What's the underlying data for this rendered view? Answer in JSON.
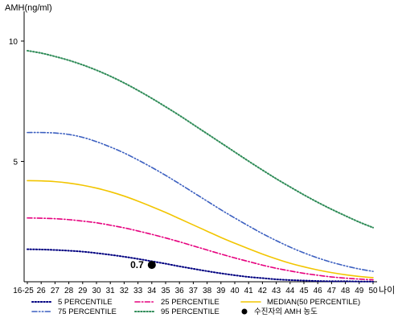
{
  "chart_data": {
    "type": "line",
    "ylabel": "AMH(ng/ml)",
    "xlabel": "나이",
    "ylim": [
      0,
      11
    ],
    "yticks": [
      5,
      10
    ],
    "x": [
      "16-25",
      "26",
      "27",
      "28",
      "29",
      "30",
      "31",
      "32",
      "33",
      "34",
      "35",
      "36",
      "37",
      "38",
      "39",
      "40",
      "41",
      "42",
      "43",
      "44",
      "45",
      "46",
      "47",
      "48",
      "49",
      "50"
    ],
    "series": [
      {
        "name": "5 PERCENTILE",
        "color": "#000080",
        "dash": "dot",
        "values": [
          1.35,
          1.34,
          1.32,
          1.29,
          1.25,
          1.19,
          1.12,
          1.04,
          0.95,
          0.85,
          0.75,
          0.64,
          0.54,
          0.44,
          0.35,
          0.27,
          0.2,
          0.15,
          0.1,
          0.07,
          0.05,
          0.03,
          0.02,
          0.02,
          0.01,
          0.01
        ]
      },
      {
        "name": "25 PERCENTILE",
        "color": "#e6007e",
        "dash": "dashdot",
        "values": [
          2.65,
          2.64,
          2.62,
          2.58,
          2.52,
          2.45,
          2.35,
          2.24,
          2.11,
          1.97,
          1.82,
          1.66,
          1.49,
          1.32,
          1.15,
          0.99,
          0.84,
          0.69,
          0.56,
          0.45,
          0.35,
          0.27,
          0.2,
          0.15,
          0.11,
          0.08
        ]
      },
      {
        "name": "MEDIAN(50 PERCENTILE)",
        "color": "#f2c500",
        "dash": "solid",
        "values": [
          4.2,
          4.19,
          4.16,
          4.1,
          4.01,
          3.89,
          3.74,
          3.56,
          3.35,
          3.12,
          2.88,
          2.62,
          2.36,
          2.1,
          1.84,
          1.6,
          1.37,
          1.15,
          0.95,
          0.77,
          0.62,
          0.49,
          0.38,
          0.29,
          0.22,
          0.17
        ]
      },
      {
        "name": "75 PERCENTILE",
        "color": "#3b5fc0",
        "dash": "dashdotdot",
        "values": [
          6.2,
          6.2,
          6.18,
          6.12,
          6.0,
          5.82,
          5.6,
          5.35,
          5.06,
          4.75,
          4.42,
          4.07,
          3.71,
          3.35,
          2.99,
          2.65,
          2.32,
          2.0,
          1.71,
          1.44,
          1.2,
          0.99,
          0.81,
          0.66,
          0.53,
          0.43
        ]
      },
      {
        "name": "95 PERCENTILE",
        "color": "#2e8b57",
        "dash": "dot",
        "values": [
          9.6,
          9.5,
          9.36,
          9.2,
          9.01,
          8.79,
          8.54,
          8.26,
          7.95,
          7.62,
          7.27,
          6.91,
          6.53,
          6.15,
          5.77,
          5.39,
          5.01,
          4.64,
          4.28,
          3.94,
          3.61,
          3.3,
          3.01,
          2.74,
          2.48,
          2.25
        ]
      }
    ],
    "marker": {
      "name": "수진자의 AMH 농도",
      "x": "34",
      "y": 0.7,
      "label": "0.7",
      "color": "#000000"
    },
    "legend": {
      "position": "bottom",
      "entries": [
        {
          "label": "5 PERCENTILE",
          "series": 0
        },
        {
          "label": "25 PERCENTILE",
          "series": 1
        },
        {
          "label": "MEDIAN(50 PERCENTILE)",
          "series": 2
        },
        {
          "label": "75 PERCENTILE",
          "series": 3
        },
        {
          "label": "95 PERCENTILE",
          "series": 4
        },
        {
          "label": "수진자의 AMH 농도",
          "marker": true
        }
      ]
    }
  }
}
